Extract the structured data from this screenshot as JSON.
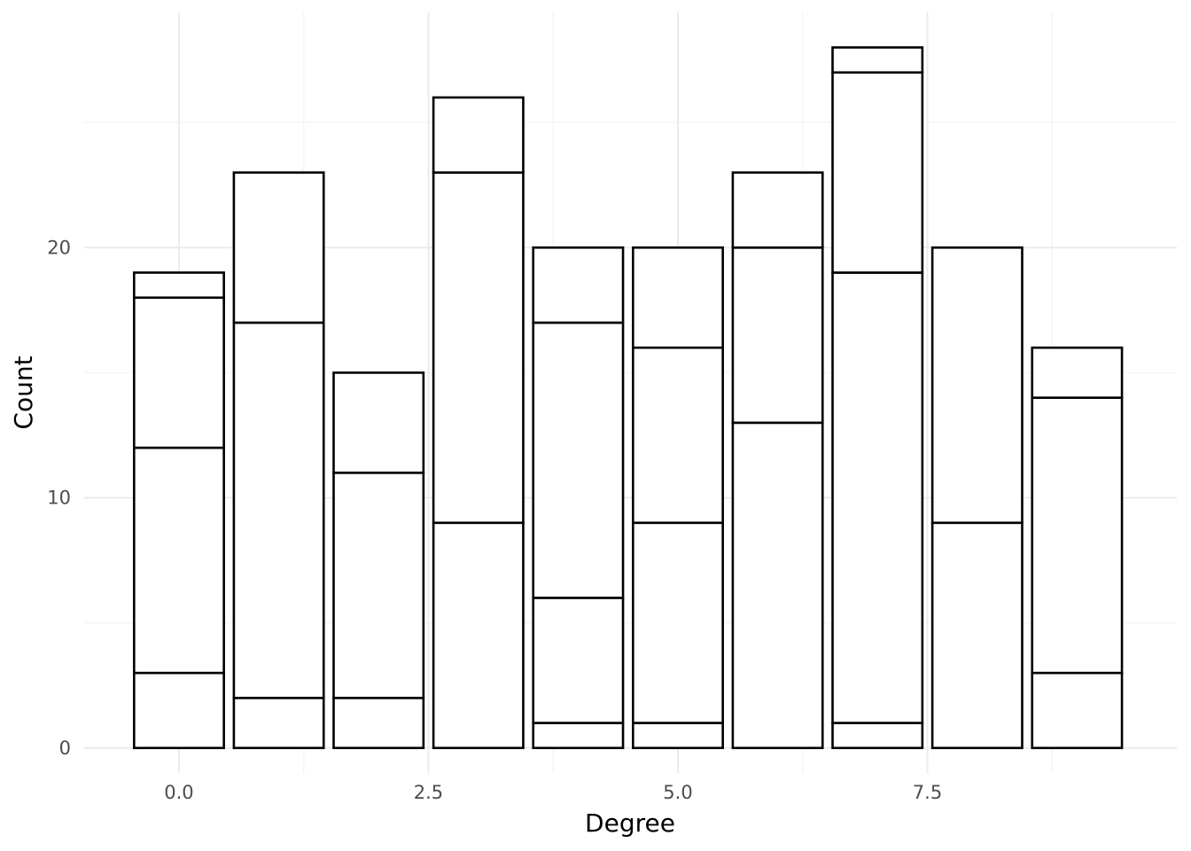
{
  "chart_data": {
    "type": "bar",
    "stacked": true,
    "xlabel": "Degree",
    "ylabel": "Count",
    "x": [
      0,
      1,
      2,
      3,
      4,
      5,
      6,
      7,
      8,
      9
    ],
    "x_ticks": [
      0.0,
      2.5,
      5.0,
      7.5
    ],
    "x_tick_labels": [
      "0.0",
      "2.5",
      "5.0",
      "7.5"
    ],
    "y_ticks": [
      0,
      10,
      20
    ],
    "y_tick_labels": [
      "0",
      "10",
      "20"
    ],
    "xlim": [
      -0.95,
      10.0
    ],
    "ylim": [
      -1.0,
      29.4
    ],
    "grid": true,
    "legend": "none",
    "fill_color": "#ffffff",
    "stroke_color": "#000000",
    "series": [
      {
        "values": [
          3,
          2,
          2,
          9,
          1,
          1,
          13,
          1,
          9,
          3
        ]
      },
      {
        "values": [
          9,
          15,
          9,
          14,
          5,
          8,
          7,
          18,
          11,
          11
        ]
      },
      {
        "values": [
          6,
          6,
          4,
          3,
          11,
          7,
          3,
          8,
          0,
          2
        ]
      },
      {
        "values": [
          1,
          0,
          0,
          0,
          3,
          4,
          0,
          1,
          0,
          0
        ]
      }
    ],
    "totals": [
      19,
      23,
      15,
      26,
      20,
      20,
      23,
      28,
      20,
      16
    ]
  }
}
